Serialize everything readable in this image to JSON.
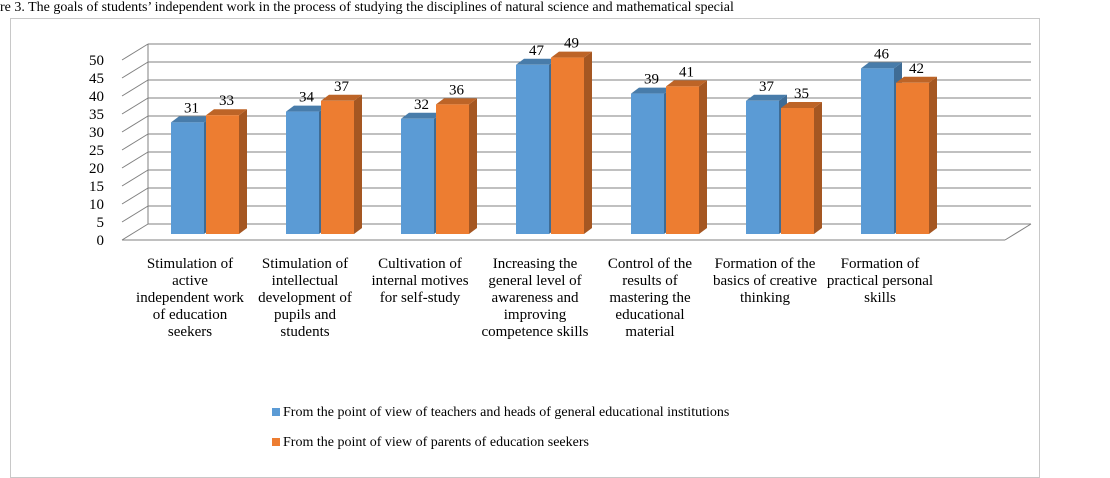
{
  "chart_data": {
    "type": "bar3d",
    "title": "re 3. The goals of students’ independent work in the process of studying the disciplines of natural science and mathematical special",
    "categories": [
      "Stimulation of active independent work of education seekers",
      "Stimulation of intellectual development of pupils and students",
      "Cultivation of internal motives for self-study",
      "Increasing the general level of awareness and improving competence skills",
      "Control of the results of mastering the educational material",
      "Formation of the basics of creative thinking",
      "Formation of practical personal skills"
    ],
    "series": [
      {
        "name": "From the point of view of teachers and heads of general educational institutions",
        "color": "#5b9bd5",
        "values": [
          31,
          34,
          32,
          47,
          39,
          37,
          46
        ]
      },
      {
        "name": "From the point of view of parents of education seekers",
        "color": "#ed7d31",
        "values": [
          33,
          37,
          36,
          49,
          41,
          35,
          42
        ]
      }
    ],
    "ylim": [
      0,
      50
    ],
    "yticks": [
      0,
      5,
      10,
      15,
      20,
      25,
      30,
      35,
      40,
      45,
      50
    ],
    "grid": true
  }
}
